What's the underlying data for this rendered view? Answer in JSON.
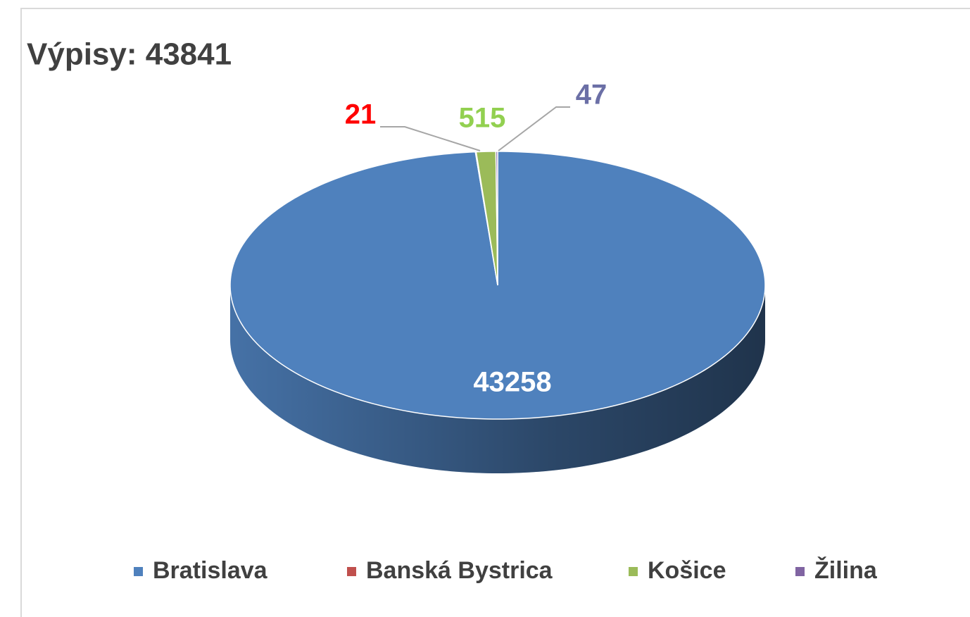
{
  "chart_data": {
    "type": "pie",
    "title": "Výpisy: 43841",
    "categories": [
      "Bratislava",
      "Banská Bystrica",
      "Košice",
      "Žilina"
    ],
    "values": [
      43258,
      21,
      515,
      47
    ],
    "colors": [
      "#4f81bd",
      "#c0504d",
      "#9bbb59",
      "#8064a2"
    ],
    "label_colors": [
      "#ffffff",
      "#ff0000",
      "#92d050",
      "#6b6fa6"
    ],
    "legend": "bottom"
  }
}
